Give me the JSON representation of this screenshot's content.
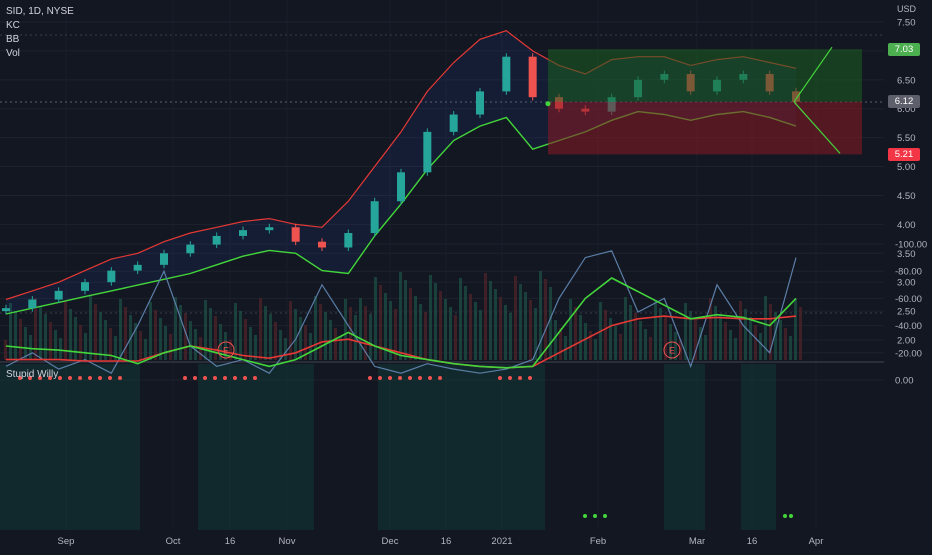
{
  "header": {
    "symbol_line": "SID, 1D, NYSE",
    "overlays": [
      "KC",
      "BB",
      "Vol"
    ]
  },
  "currency": "USD",
  "price_axis": {
    "ticks": [
      "7.50",
      "7.00",
      "6.50",
      "6.00",
      "5.50",
      "5.00",
      "4.50",
      "4.00",
      "3.50",
      "3.00",
      "2.50",
      "2.00"
    ]
  },
  "price_tags": {
    "target": "7.03",
    "current": "6.12",
    "stop": "5.21",
    "target_color": "#4caf50",
    "current_color": "#5d606b",
    "stop_color": "#f23645"
  },
  "time_axis": {
    "labels": [
      "Sep",
      "Oct",
      "16",
      "Nov",
      "Dec",
      "16",
      "2021",
      "Feb",
      "Mar",
      "16",
      "Apr"
    ]
  },
  "earnings_marker": "E",
  "indicator": {
    "title": "Stupid Willy",
    "ticks": [
      "0.00",
      "-20.00",
      "-40.00",
      "-60.00",
      "-80.00",
      "-100.00"
    ]
  },
  "colors": {
    "background": "#131722",
    "up": "#26a69a",
    "down": "#ef5350",
    "upper_band": "#e53935",
    "lower_band": "#43d63a",
    "fast_line": "#5b7fa8"
  },
  "chart_data": [
    {
      "type": "candlestick",
      "symbol": "SID",
      "interval": "1D",
      "exchange": "NYSE",
      "ylim": [
        1.75,
        7.6
      ],
      "x": [
        "2020-08-24",
        "2020-08-31",
        "2020-09-07",
        "2020-09-14",
        "2020-09-21",
        "2020-09-28",
        "2020-10-05",
        "2020-10-12",
        "2020-10-19",
        "2020-10-26",
        "2020-11-02",
        "2020-11-09",
        "2020-11-16",
        "2020-11-23",
        "2020-11-30",
        "2020-12-07",
        "2020-12-14",
        "2020-12-21",
        "2020-12-28",
        "2021-01-04",
        "2021-01-11",
        "2021-01-18",
        "2021-01-25",
        "2021-02-01",
        "2021-02-08",
        "2021-02-15",
        "2021-02-22",
        "2021-03-01",
        "2021-03-08",
        "2021-03-15",
        "2021-03-22"
      ],
      "close": [
        2.55,
        2.7,
        2.85,
        3.0,
        3.2,
        3.3,
        3.5,
        3.65,
        3.8,
        3.9,
        3.95,
        3.7,
        3.6,
        3.85,
        4.4,
        4.9,
        5.6,
        5.9,
        6.3,
        6.9,
        6.2,
        6.0,
        5.95,
        6.2,
        6.5,
        6.6,
        6.3,
        6.5,
        6.6,
        6.3,
        6.12
      ],
      "upper_band": [
        2.7,
        2.85,
        3.0,
        3.2,
        3.4,
        3.5,
        3.7,
        3.85,
        3.95,
        4.05,
        4.1,
        4.0,
        3.95,
        4.4,
        5.0,
        5.6,
        6.3,
        6.8,
        7.2,
        7.35,
        7.0,
        6.75,
        6.6,
        6.85,
        6.9,
        6.9,
        6.75,
        6.85,
        6.9,
        6.8,
        6.7
      ],
      "lower_band": [
        2.45,
        2.55,
        2.65,
        2.75,
        2.85,
        2.95,
        3.05,
        3.15,
        3.3,
        3.45,
        3.55,
        3.5,
        3.2,
        3.15,
        3.8,
        4.35,
        4.95,
        5.45,
        5.7,
        5.85,
        5.3,
        5.45,
        5.6,
        5.8,
        5.95,
        5.9,
        5.8,
        5.9,
        5.95,
        5.85,
        5.7
      ],
      "trade_setup": {
        "entry": 6.12,
        "target": 7.03,
        "stop": 5.21
      },
      "earnings": [
        "2020-10-01",
        "2021-02-23"
      ]
    },
    {
      "type": "line",
      "title": "Stupid Willy",
      "ylim": [
        -105,
        5
      ],
      "x": [
        "2020-08-24",
        "2020-08-31",
        "2020-09-07",
        "2020-09-14",
        "2020-09-21",
        "2020-09-28",
        "2020-10-05",
        "2020-10-12",
        "2020-10-19",
        "2020-10-26",
        "2020-11-02",
        "2020-11-09",
        "2020-11-16",
        "2020-11-23",
        "2020-11-30",
        "2020-12-07",
        "2020-12-14",
        "2020-12-21",
        "2020-12-28",
        "2021-01-04",
        "2021-01-11",
        "2021-01-18",
        "2021-01-25",
        "2021-02-01",
        "2021-02-08",
        "2021-02-15",
        "2021-02-22",
        "2021-03-01",
        "2021-03-08",
        "2021-03-15",
        "2021-03-22"
      ],
      "series": [
        {
          "values": [
            -10,
            -20,
            -8,
            -15,
            -5,
            -40,
            -80,
            -25,
            -10,
            -15,
            -5,
            -30,
            -70,
            -40,
            -10,
            -5,
            -12,
            -8,
            -5,
            -8,
            -15,
            -60,
            -90,
            -95,
            -50,
            -60,
            -10,
            -70,
            -40,
            -20,
            -90
          ]
        },
        {
          "values": [
            -25,
            -23,
            -22,
            -20,
            -18,
            -12,
            -20,
            -25,
            -20,
            -15,
            -10,
            -15,
            -25,
            -35,
            -25,
            -18,
            -15,
            -12,
            -10,
            -9,
            -10,
            -35,
            -60,
            -75,
            -65,
            -55,
            -45,
            -48,
            -46,
            -40,
            -60
          ]
        },
        {
          "values": [
            -15,
            -15,
            -15,
            -14,
            -14,
            -14,
            -20,
            -25,
            -22,
            -18,
            -16,
            -20,
            -28,
            -30,
            -25,
            -20,
            -15,
            -12,
            -10,
            -9,
            -10,
            -20,
            -30,
            -40,
            -45,
            -47,
            -45,
            -46,
            -45,
            -45,
            -47
          ]
        }
      ]
    }
  ]
}
